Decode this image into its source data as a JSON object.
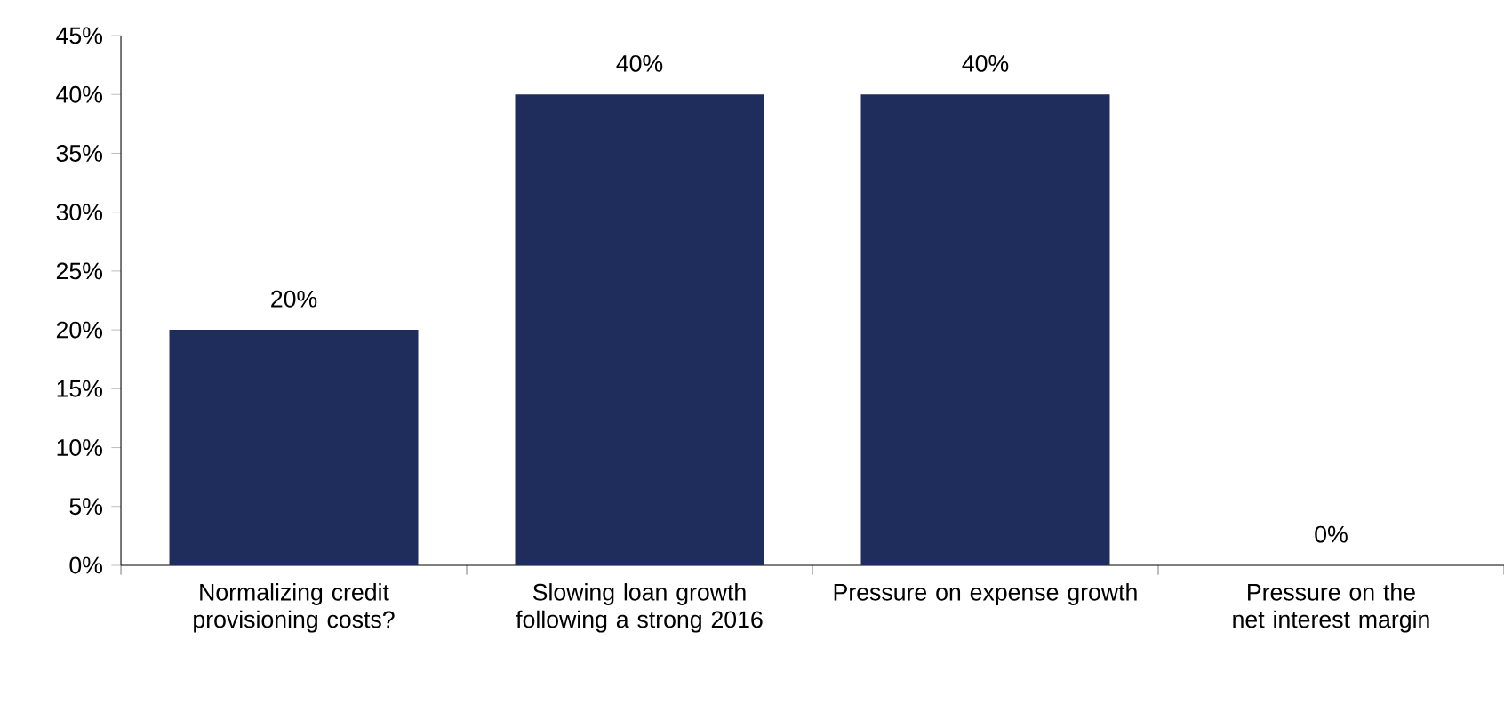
{
  "chart_data": {
    "type": "bar",
    "categories": [
      "Normalizing credit provisioning costs?",
      "Slowing loan growth following a strong 2016",
      "Pressure on expense growth",
      "Pressure on the net interest margin"
    ],
    "values": [
      20,
      40,
      40,
      0
    ],
    "value_labels": [
      "20%",
      "40%",
      "40%",
      "0%"
    ],
    "color": "#1f2d5c",
    "ylim": [
      0,
      45
    ],
    "yticks": [
      {
        "value": 0,
        "label": "0%"
      },
      {
        "value": 5,
        "label": "5%"
      },
      {
        "value": 10,
        "label": "10%"
      },
      {
        "value": 15,
        "label": "15%"
      },
      {
        "value": 20,
        "label": "20%"
      },
      {
        "value": 25,
        "label": "25%"
      },
      {
        "value": 30,
        "label": "30%"
      },
      {
        "value": 35,
        "label": "35%"
      },
      {
        "value": 40,
        "label": "40%"
      },
      {
        "value": 45,
        "label": "45%"
      }
    ]
  }
}
